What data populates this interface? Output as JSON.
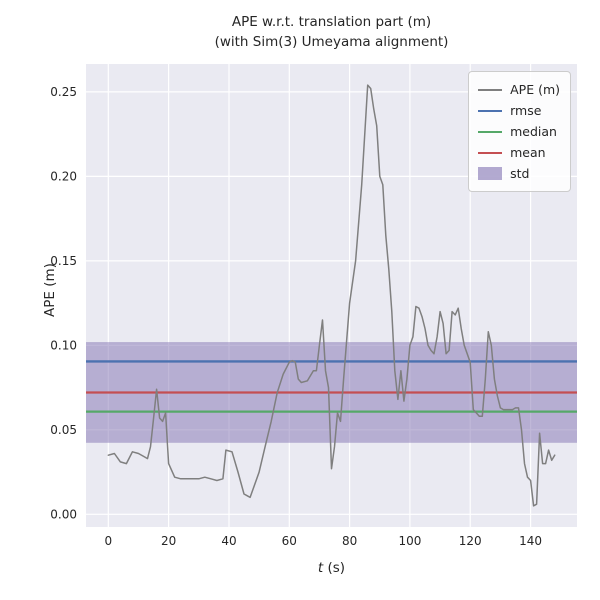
{
  "chart_data": {
    "type": "line",
    "title_line1": "APE w.r.t. translation part (m)",
    "title_line2": "(with Sim(3) Umeyama alignment)",
    "xlabel": "t (s)",
    "xlabel_var": "t",
    "xlabel_unit": " (s)",
    "ylabel": "APE (m)",
    "xlim": [
      -7.4,
      155.4
    ],
    "ylim": [
      -0.0075,
      0.2665
    ],
    "x_ticks": [
      0,
      20,
      40,
      60,
      80,
      100,
      120,
      140
    ],
    "x_tick_labels": [
      "0",
      "20",
      "40",
      "60",
      "80",
      "100",
      "120",
      "140"
    ],
    "y_ticks": [
      0.0,
      0.05,
      0.1,
      0.15,
      0.2,
      0.25
    ],
    "y_tick_labels": [
      "0.00",
      "0.05",
      "0.10",
      "0.15",
      "0.20",
      "0.25"
    ],
    "grid": true,
    "background_color": "#eaeaf2",
    "grid_color": "#ffffff",
    "series": [
      {
        "name": "APE (m)",
        "color": "#7f7f7f",
        "x": [
          0,
          2,
          4,
          6,
          8,
          10,
          12,
          13,
          14,
          15,
          16,
          17,
          18,
          19,
          20,
          22,
          24,
          26,
          28,
          30,
          32,
          34,
          36,
          38,
          39,
          41,
          43,
          45,
          46,
          47,
          48,
          50,
          52,
          54,
          56,
          58,
          60,
          61,
          62,
          63,
          64,
          66,
          68,
          69,
          70,
          71,
          72,
          73,
          74,
          75,
          76,
          77,
          78,
          80,
          82,
          84,
          86,
          87,
          88,
          89,
          90,
          91,
          92,
          93,
          94,
          95,
          96,
          97,
          98,
          99,
          100,
          101,
          102,
          103,
          104,
          105,
          106,
          107,
          108,
          109,
          110,
          111,
          112,
          113,
          114,
          115,
          116,
          117,
          118,
          119,
          120,
          121,
          122,
          123,
          124,
          125,
          126,
          127,
          128,
          129,
          130,
          131,
          132,
          133,
          134,
          135,
          136,
          137,
          138,
          139,
          140,
          141,
          142,
          143,
          144,
          145,
          146,
          147,
          148
        ],
        "y": [
          0.035,
          0.036,
          0.031,
          0.03,
          0.037,
          0.036,
          0.034,
          0.033,
          0.04,
          0.057,
          0.074,
          0.057,
          0.055,
          0.06,
          0.03,
          0.022,
          0.021,
          0.021,
          0.021,
          0.021,
          0.022,
          0.021,
          0.02,
          0.021,
          0.038,
          0.037,
          0.025,
          0.012,
          0.011,
          0.01,
          0.015,
          0.025,
          0.04,
          0.055,
          0.072,
          0.083,
          0.09,
          0.091,
          0.09,
          0.08,
          0.078,
          0.079,
          0.085,
          0.085,
          0.1,
          0.115,
          0.085,
          0.075,
          0.027,
          0.04,
          0.06,
          0.055,
          0.08,
          0.125,
          0.15,
          0.195,
          0.254,
          0.252,
          0.24,
          0.23,
          0.2,
          0.195,
          0.165,
          0.145,
          0.12,
          0.085,
          0.068,
          0.085,
          0.067,
          0.08,
          0.1,
          0.105,
          0.123,
          0.122,
          0.117,
          0.11,
          0.1,
          0.097,
          0.095,
          0.105,
          0.12,
          0.113,
          0.095,
          0.097,
          0.12,
          0.118,
          0.122,
          0.11,
          0.1,
          0.095,
          0.09,
          0.062,
          0.06,
          0.058,
          0.058,
          0.08,
          0.108,
          0.1,
          0.08,
          0.07,
          0.063,
          0.062,
          0.062,
          0.062,
          0.062,
          0.063,
          0.063,
          0.05,
          0.03,
          0.022,
          0.02,
          0.005,
          0.006,
          0.048,
          0.03,
          0.03,
          0.038,
          0.032,
          0.035
        ]
      }
    ],
    "stats": {
      "rmse": {
        "value": 0.0905,
        "color": "#4c72b0"
      },
      "median": {
        "value": 0.0608,
        "color": "#55a868"
      },
      "mean": {
        "value": 0.0721,
        "color": "#c44e52"
      },
      "std": {
        "band": [
          0.0423,
          0.1019
        ],
        "color": "#8172b2",
        "opacity": 0.5
      }
    },
    "legend": {
      "position": "upper right",
      "entries": [
        {
          "label": "APE (m)",
          "color": "#7f7f7f",
          "type": "line"
        },
        {
          "label": "rmse",
          "color": "#4c72b0",
          "type": "line"
        },
        {
          "label": "median",
          "color": "#55a868",
          "type": "line"
        },
        {
          "label": "mean",
          "color": "#c44e52",
          "type": "line"
        },
        {
          "label": "std",
          "color": "#8172b2",
          "type": "patch"
        }
      ]
    }
  }
}
